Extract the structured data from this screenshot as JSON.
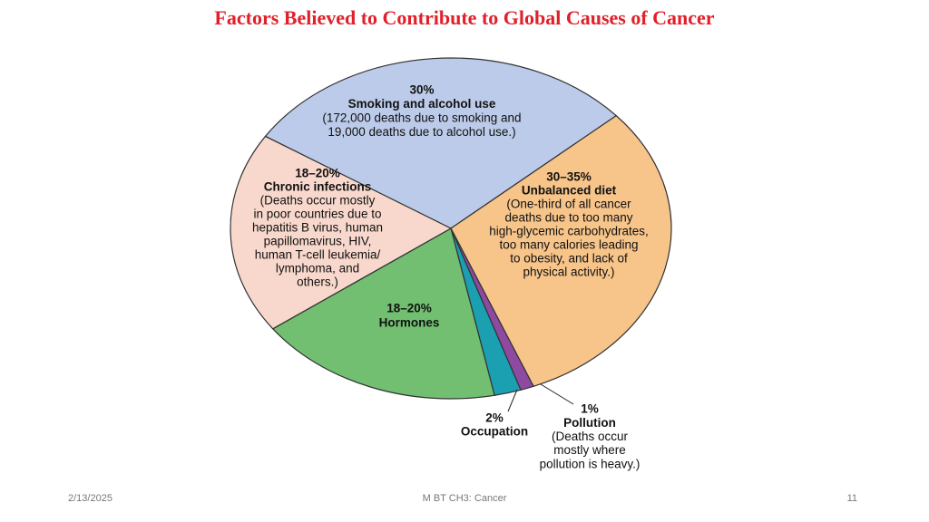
{
  "chart_data": {
    "type": "pie",
    "title": "Factors Believed to Contribute to Global Causes of Cancer",
    "categories": [
      "Smoking and alcohol use",
      "Unbalanced diet",
      "Pollution",
      "Occupation",
      "Hormones",
      "Chronic infections"
    ],
    "values": [
      30,
      31,
      1,
      2,
      18.5,
      19.5
    ],
    "value_labels": [
      "30%",
      "30–35%",
      "1%",
      "2%",
      "18–20%",
      "18–20%"
    ],
    "descriptions": [
      [
        "(172,000 deaths due to smoking and",
        "19,000 deaths due to alcohol use.)"
      ],
      [
        "(One-third of all cancer",
        "deaths due to too many",
        "high-glycemic carbohydrates,",
        "too many calories leading",
        "to obesity, and lack of",
        "physical activity.)"
      ],
      [
        "(Deaths occur",
        "mostly where",
        "pollution is heavy.)"
      ],
      null,
      null,
      [
        "(Deaths occur mostly",
        "in poor countries due to",
        "hepatitis B virus, human",
        "papillomavirus, HIV,",
        "human T-cell leukemia/",
        "lymphoma, and",
        "others.)"
      ]
    ],
    "colors": [
      "#bccbe9",
      "#f7c48a",
      "#8e4aa0",
      "#1aa0b0",
      "#72bf72",
      "#f8d8cc"
    ]
  },
  "footer": {
    "date": "2/13/2025",
    "text": "M BT CH3: Cancer",
    "page": "11"
  }
}
